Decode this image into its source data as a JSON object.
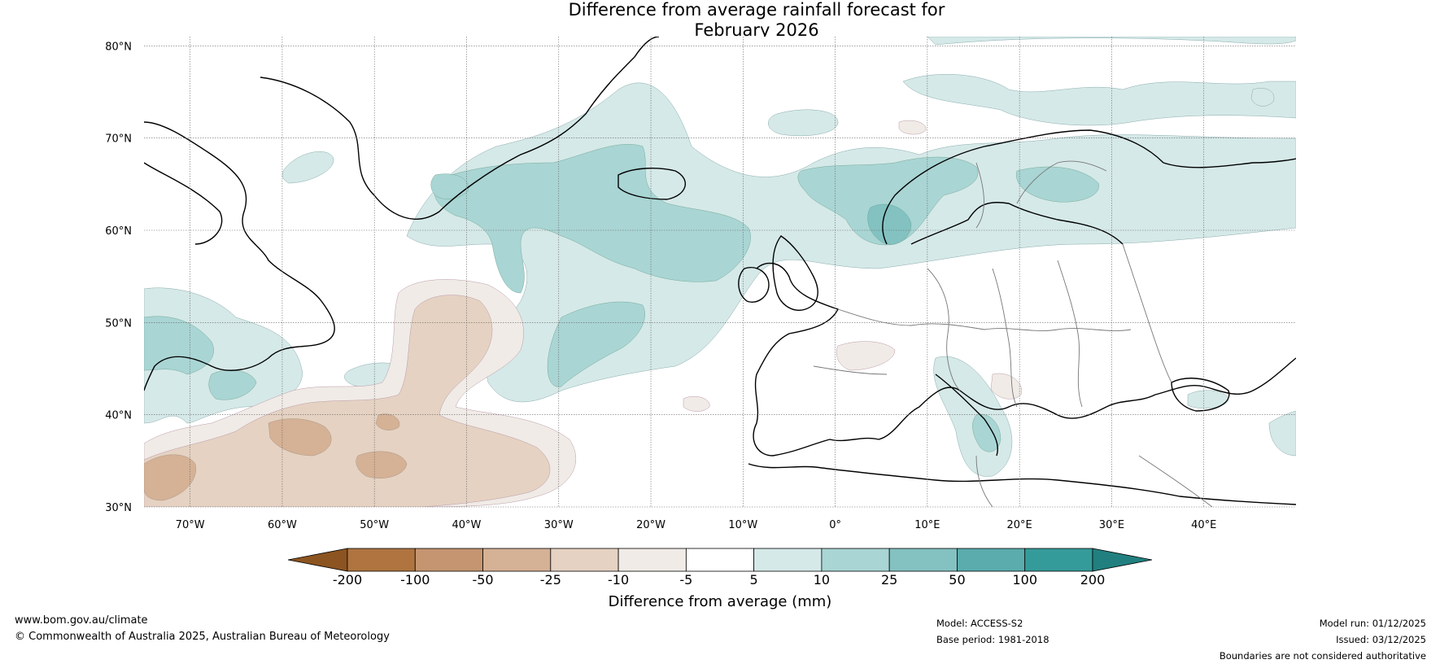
{
  "title_line1": "Difference from average rainfall forecast for",
  "title_line2": "February 2026",
  "map": {
    "lon_ticks": [
      {
        "lon": -70,
        "label": "70°W"
      },
      {
        "lon": -60,
        "label": "60°W"
      },
      {
        "lon": -50,
        "label": "50°W"
      },
      {
        "lon": -40,
        "label": "40°W"
      },
      {
        "lon": -30,
        "label": "30°W"
      },
      {
        "lon": -20,
        "label": "20°W"
      },
      {
        "lon": -10,
        "label": "10°W"
      },
      {
        "lon": 0,
        "label": "0°"
      },
      {
        "lon": 10,
        "label": "10°E"
      },
      {
        "lon": 20,
        "label": "20°E"
      },
      {
        "lon": 30,
        "label": "30°E"
      },
      {
        "lon": 40,
        "label": "40°E"
      }
    ],
    "lat_ticks": [
      {
        "lat": 80,
        "label": "80°N"
      },
      {
        "lat": 70,
        "label": "70°N"
      },
      {
        "lat": 60,
        "label": "60°N"
      },
      {
        "lat": 50,
        "label": "50°N"
      },
      {
        "lat": 40,
        "label": "40°N"
      },
      {
        "lat": 30,
        "label": "30°N"
      }
    ],
    "lon_range": [
      -75,
      50
    ],
    "lat_range": [
      30,
      81
    ],
    "colors": {
      "neg200": "#8c5420",
      "neg100": "#af7440",
      "neg50": "#c49570",
      "neg25": "#d5b195",
      "neg10": "#e5d2c2",
      "neg5": "#f0ebe6",
      "zero": "#ffffff",
      "pos5": "#d5e9e8",
      "pos10": "#a9d5d4",
      "pos25": "#83c2c1",
      "pos50": "#5aacad",
      "pos100": "#359b9a",
      "pos200": "#21807f"
    }
  },
  "colorbar": {
    "labels": [
      "-200",
      "-100",
      "-50",
      "-25",
      "-10",
      "-5",
      "5",
      "10",
      "25",
      "50",
      "100",
      "200"
    ],
    "title": "Difference from average (mm)"
  },
  "footer": {
    "url": "www.bom.gov.au/climate",
    "copyright": "© Commonwealth of Australia 2025, Australian Bureau of Meteorology",
    "model": "Model: ACCESS-S2",
    "base_period": "Base period: 1981-2018",
    "model_run": "Model run: 01/12/2025",
    "issued": "Issued: 03/12/2025",
    "disclaimer": "Boundaries are not considered authoritative"
  }
}
